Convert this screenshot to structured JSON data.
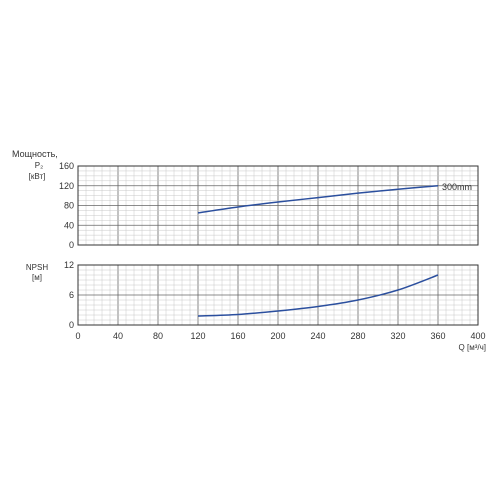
{
  "chart_data": [
    {
      "type": "line",
      "title": "Мощность,",
      "ylabel_line1": "P₂",
      "ylabel_line2": "[кВт]",
      "xlim": [
        0,
        400
      ],
      "ylim": [
        0,
        160
      ],
      "x_ticks": [
        "0",
        "40",
        "80",
        "120",
        "160",
        "200",
        "240",
        "280",
        "320",
        "360",
        "400"
      ],
      "y_ticks": [
        "0",
        "40",
        "80",
        "120",
        "160"
      ],
      "grid": true,
      "series": [
        {
          "name": "300mm",
          "color": "#2b4f9e",
          "x": [
            120,
            160,
            200,
            240,
            280,
            320,
            360
          ],
          "y": [
            65,
            77,
            87,
            96,
            105,
            113,
            120
          ]
        }
      ]
    },
    {
      "type": "line",
      "ylabel_line1": "NPSH",
      "ylabel_line2": "[м]",
      "xlabel": "Q [м³/ч]",
      "xlim": [
        0,
        400
      ],
      "ylim": [
        0,
        12
      ],
      "y_ticks": [
        "0",
        "6",
        "12"
      ],
      "grid": true,
      "series": [
        {
          "color": "#2b4f9e",
          "x": [
            120,
            160,
            200,
            240,
            280,
            320,
            360
          ],
          "y": [
            1.8,
            2.1,
            2.8,
            3.7,
            5.0,
            7.0,
            10.0
          ]
        }
      ]
    }
  ]
}
